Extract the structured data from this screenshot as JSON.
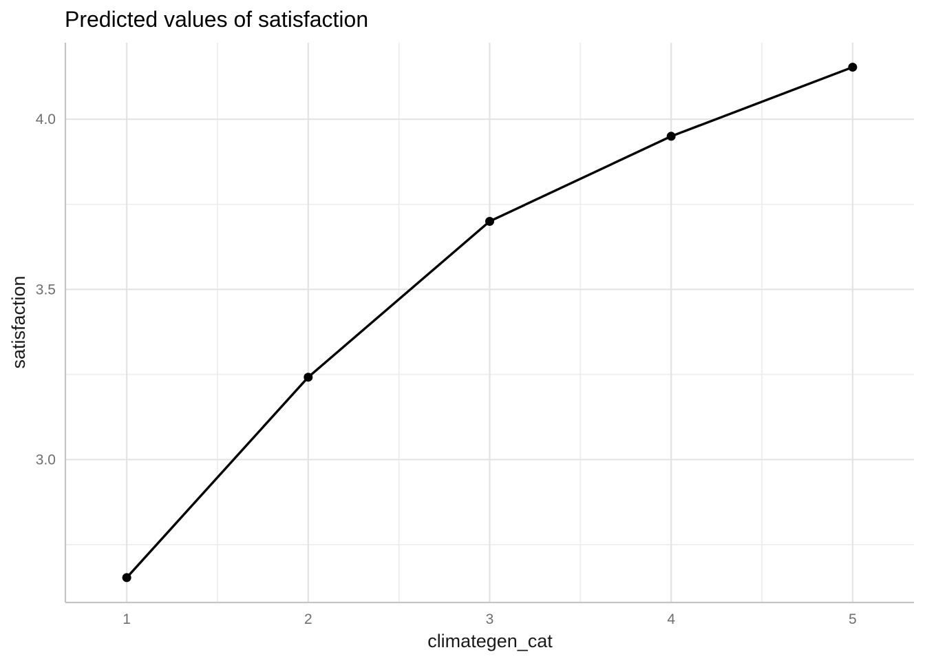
{
  "chart_data": {
    "type": "line",
    "title": "Predicted values of satisfaction",
    "xlabel": "climategen_cat",
    "ylabel": "satisfaction",
    "x": [
      1,
      2,
      3,
      4,
      5
    ],
    "series": [
      {
        "values": [
          2.653,
          3.242,
          3.7,
          3.95,
          4.153
        ]
      }
    ],
    "x_ticks": [
      "1",
      "2",
      "3",
      "4",
      "5"
    ],
    "y_ticks": [
      "3.0",
      "3.5",
      "4.0"
    ],
    "xlim": [
      0.662,
      5.338
    ],
    "ylim": [
      2.58,
      4.225
    ],
    "grid": true,
    "colors": {
      "line": "#000000",
      "grid": "#e3e3e3",
      "axis": "#c4c4c4",
      "tick_label": "#6e6e6e"
    }
  }
}
